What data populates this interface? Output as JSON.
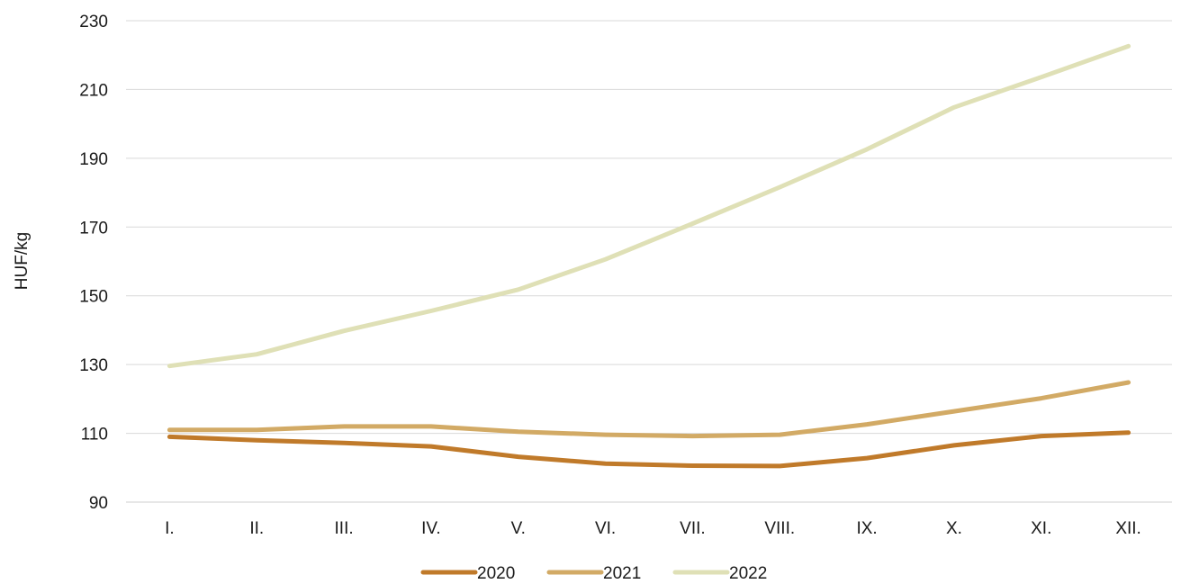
{
  "chart_data": {
    "type": "line",
    "ylabel": "HUF/kg",
    "xlabel": "",
    "ylim": [
      90,
      230
    ],
    "yticks": [
      90,
      110,
      130,
      150,
      170,
      190,
      210,
      230
    ],
    "categories": [
      "I.",
      "II.",
      "III.",
      "IV.",
      "V.",
      "VI.",
      "VII.",
      "VIII.",
      "IX.",
      "X.",
      "XI.",
      "XII."
    ],
    "grid": true,
    "legend_position": "bottom",
    "series": [
      {
        "name": "2020",
        "color": "#c07a2a",
        "values": [
          109,
          108,
          107.2,
          106.2,
          103.2,
          101.2,
          100.6,
          100.5,
          102.8,
          106.5,
          109.2,
          110.2
        ]
      },
      {
        "name": "2021",
        "color": "#d2aa65",
        "values": [
          111,
          111,
          112,
          112,
          110.5,
          109.6,
          109.2,
          109.6,
          112.6,
          116.4,
          120.2,
          124.8
        ]
      },
      {
        "name": "2022",
        "color": "#dfe0b6",
        "values": [
          129.6,
          133,
          139.8,
          145.6,
          151.8,
          160.6,
          171,
          181.6,
          192.6,
          204.8,
          213.6,
          222.6
        ]
      }
    ]
  }
}
